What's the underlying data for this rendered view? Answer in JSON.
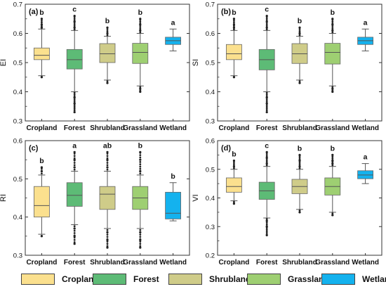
{
  "chart_data": [
    {
      "type": "boxplot",
      "panel_label": "(a)",
      "ylabel": "EI",
      "ylim": [
        0.3,
        0.7
      ],
      "yticks": [
        "0.3",
        "0.4",
        "0.5",
        "0.6",
        "0.7"
      ],
      "categories": [
        "Cropland",
        "Forest",
        "Shrubland",
        "Grassland",
        "Wetland"
      ],
      "boxes": [
        {
          "min": 0.455,
          "q1": 0.51,
          "median": 0.525,
          "q3": 0.55,
          "max": 0.615,
          "outliers_high": [
            0.62,
            0.63,
            0.65
          ],
          "outliers_low": [
            0.45
          ],
          "letter": "b"
        },
        {
          "min": 0.4,
          "q1": 0.478,
          "median": 0.51,
          "q3": 0.545,
          "max": 0.61,
          "outliers_high": [
            0.62,
            0.64,
            0.66
          ],
          "outliers_low": [
            0.38,
            0.36,
            0.33
          ],
          "letter": "c"
        },
        {
          "min": 0.44,
          "q1": 0.5,
          "median": 0.53,
          "q3": 0.565,
          "max": 0.59,
          "outliers_high": [
            0.6,
            0.62
          ],
          "outliers_low": [
            0.43
          ],
          "letter": "b"
        },
        {
          "min": 0.42,
          "q1": 0.497,
          "median": 0.535,
          "q3": 0.566,
          "max": 0.6,
          "outliers_high": [
            0.61,
            0.63,
            0.65
          ],
          "outliers_low": [
            0.41,
            0.4
          ],
          "letter": "b"
        },
        {
          "min": 0.54,
          "q1": 0.562,
          "median": 0.575,
          "q3": 0.587,
          "max": 0.615,
          "outliers_high": [],
          "outliers_low": [],
          "letter": "a"
        }
      ]
    },
    {
      "type": "boxplot",
      "panel_label": "(b)",
      "ylabel": "SI",
      "ylim": [
        0.3,
        0.7
      ],
      "yticks": [
        "0.3",
        "0.4",
        "0.5",
        "0.6",
        "0.7"
      ],
      "categories": [
        "Cropland",
        "Forest",
        "Shrubland",
        "Grassland",
        "Wetland"
      ],
      "boxes": [
        {
          "min": 0.455,
          "q1": 0.51,
          "median": 0.53,
          "q3": 0.562,
          "max": 0.61,
          "outliers_high": [
            0.62,
            0.63,
            0.65
          ],
          "outliers_low": [
            0.45
          ],
          "letter": "b"
        },
        {
          "min": 0.4,
          "q1": 0.475,
          "median": 0.51,
          "q3": 0.545,
          "max": 0.61,
          "outliers_high": [
            0.62,
            0.64,
            0.66
          ],
          "outliers_low": [
            0.38,
            0.36,
            0.33
          ],
          "letter": "c"
        },
        {
          "min": 0.44,
          "q1": 0.497,
          "median": 0.53,
          "q3": 0.565,
          "max": 0.59,
          "outliers_high": [
            0.6,
            0.62
          ],
          "outliers_low": [
            0.43
          ],
          "letter": "b"
        },
        {
          "min": 0.42,
          "q1": 0.495,
          "median": 0.535,
          "q3": 0.566,
          "max": 0.6,
          "outliers_high": [
            0.61,
            0.63,
            0.65
          ],
          "outliers_low": [
            0.41,
            0.4
          ],
          "letter": "b"
        },
        {
          "min": 0.54,
          "q1": 0.562,
          "median": 0.575,
          "q3": 0.587,
          "max": 0.615,
          "outliers_high": [],
          "outliers_low": [],
          "letter": "a"
        }
      ]
    },
    {
      "type": "boxplot",
      "panel_label": "(c)",
      "ylabel": "RI",
      "ylim": [
        0.3,
        0.6
      ],
      "yticks": [
        "0.3",
        "0.4",
        "0.5",
        "0.6"
      ],
      "categories": [
        "Cropland",
        "Forest",
        "Shrubland",
        "Grassland",
        "Wetland"
      ],
      "boxes": [
        {
          "min": 0.355,
          "q1": 0.4,
          "median": 0.43,
          "q3": 0.48,
          "max": 0.51,
          "outliers_high": [
            0.52,
            0.53
          ],
          "outliers_low": [
            0.35
          ],
          "letter": "b"
        },
        {
          "min": 0.38,
          "q1": 0.428,
          "median": 0.457,
          "q3": 0.49,
          "max": 0.52,
          "outliers_high": [
            0.53,
            0.55,
            0.57
          ],
          "outliers_low": [
            0.37,
            0.35,
            0.33
          ],
          "letter": "a"
        },
        {
          "min": 0.37,
          "q1": 0.42,
          "median": 0.46,
          "q3": 0.48,
          "max": 0.52,
          "outliers_high": [
            0.53,
            0.55,
            0.57
          ],
          "outliers_low": [
            0.36,
            0.34,
            0.32
          ],
          "letter": "ab"
        },
        {
          "min": 0.37,
          "q1": 0.42,
          "median": 0.45,
          "q3": 0.48,
          "max": 0.51,
          "outliers_high": [
            0.52,
            0.55,
            0.57
          ],
          "outliers_low": [
            0.36,
            0.34,
            0.32
          ],
          "letter": "b"
        },
        {
          "min": 0.39,
          "q1": 0.395,
          "median": 0.41,
          "q3": 0.465,
          "max": 0.49,
          "outliers_high": [],
          "outliers_low": [],
          "letter": "b"
        }
      ]
    },
    {
      "type": "boxplot",
      "panel_label": "(d)",
      "ylabel": "VI",
      "ylim": [
        0.2,
        0.6
      ],
      "yticks": [
        "0.2",
        "0.3",
        "0.4",
        "0.5",
        "0.6"
      ],
      "categories": [
        "Cropland",
        "Forest",
        "Shrubland",
        "Grassland",
        "Wetland"
      ],
      "boxes": [
        {
          "min": 0.39,
          "q1": 0.42,
          "median": 0.44,
          "q3": 0.47,
          "max": 0.5,
          "outliers_high": [
            0.51,
            0.53
          ],
          "outliers_low": [
            0.38
          ],
          "letter": "b"
        },
        {
          "min": 0.33,
          "q1": 0.395,
          "median": 0.425,
          "q3": 0.455,
          "max": 0.51,
          "outliers_high": [
            0.52,
            0.54,
            0.56
          ],
          "outliers_low": [
            0.32,
            0.3,
            0.27
          ],
          "letter": "c"
        },
        {
          "min": 0.36,
          "q1": 0.415,
          "median": 0.44,
          "q3": 0.465,
          "max": 0.5,
          "outliers_high": [
            0.51,
            0.53,
            0.55
          ],
          "outliers_low": [
            0.35
          ],
          "letter": "b"
        },
        {
          "min": 0.35,
          "q1": 0.41,
          "median": 0.44,
          "q3": 0.47,
          "max": 0.51,
          "outliers_high": [
            0.52,
            0.53,
            0.55
          ],
          "outliers_low": [
            0.34
          ],
          "letter": "b"
        },
        {
          "min": 0.45,
          "q1": 0.467,
          "median": 0.48,
          "q3": 0.495,
          "max": 0.52,
          "outliers_high": [],
          "outliers_low": [],
          "letter": "a"
        }
      ]
    }
  ],
  "legend": [
    {
      "label": "Cropland",
      "color": "#fbe08e"
    },
    {
      "label": "Forest",
      "color": "#5dbb76"
    },
    {
      "label": "Shrubland",
      "color": "#cfcc89"
    },
    {
      "label": "Grassland",
      "color": "#9ecf72"
    },
    {
      "label": "Wetland",
      "color": "#14b2ee"
    }
  ]
}
